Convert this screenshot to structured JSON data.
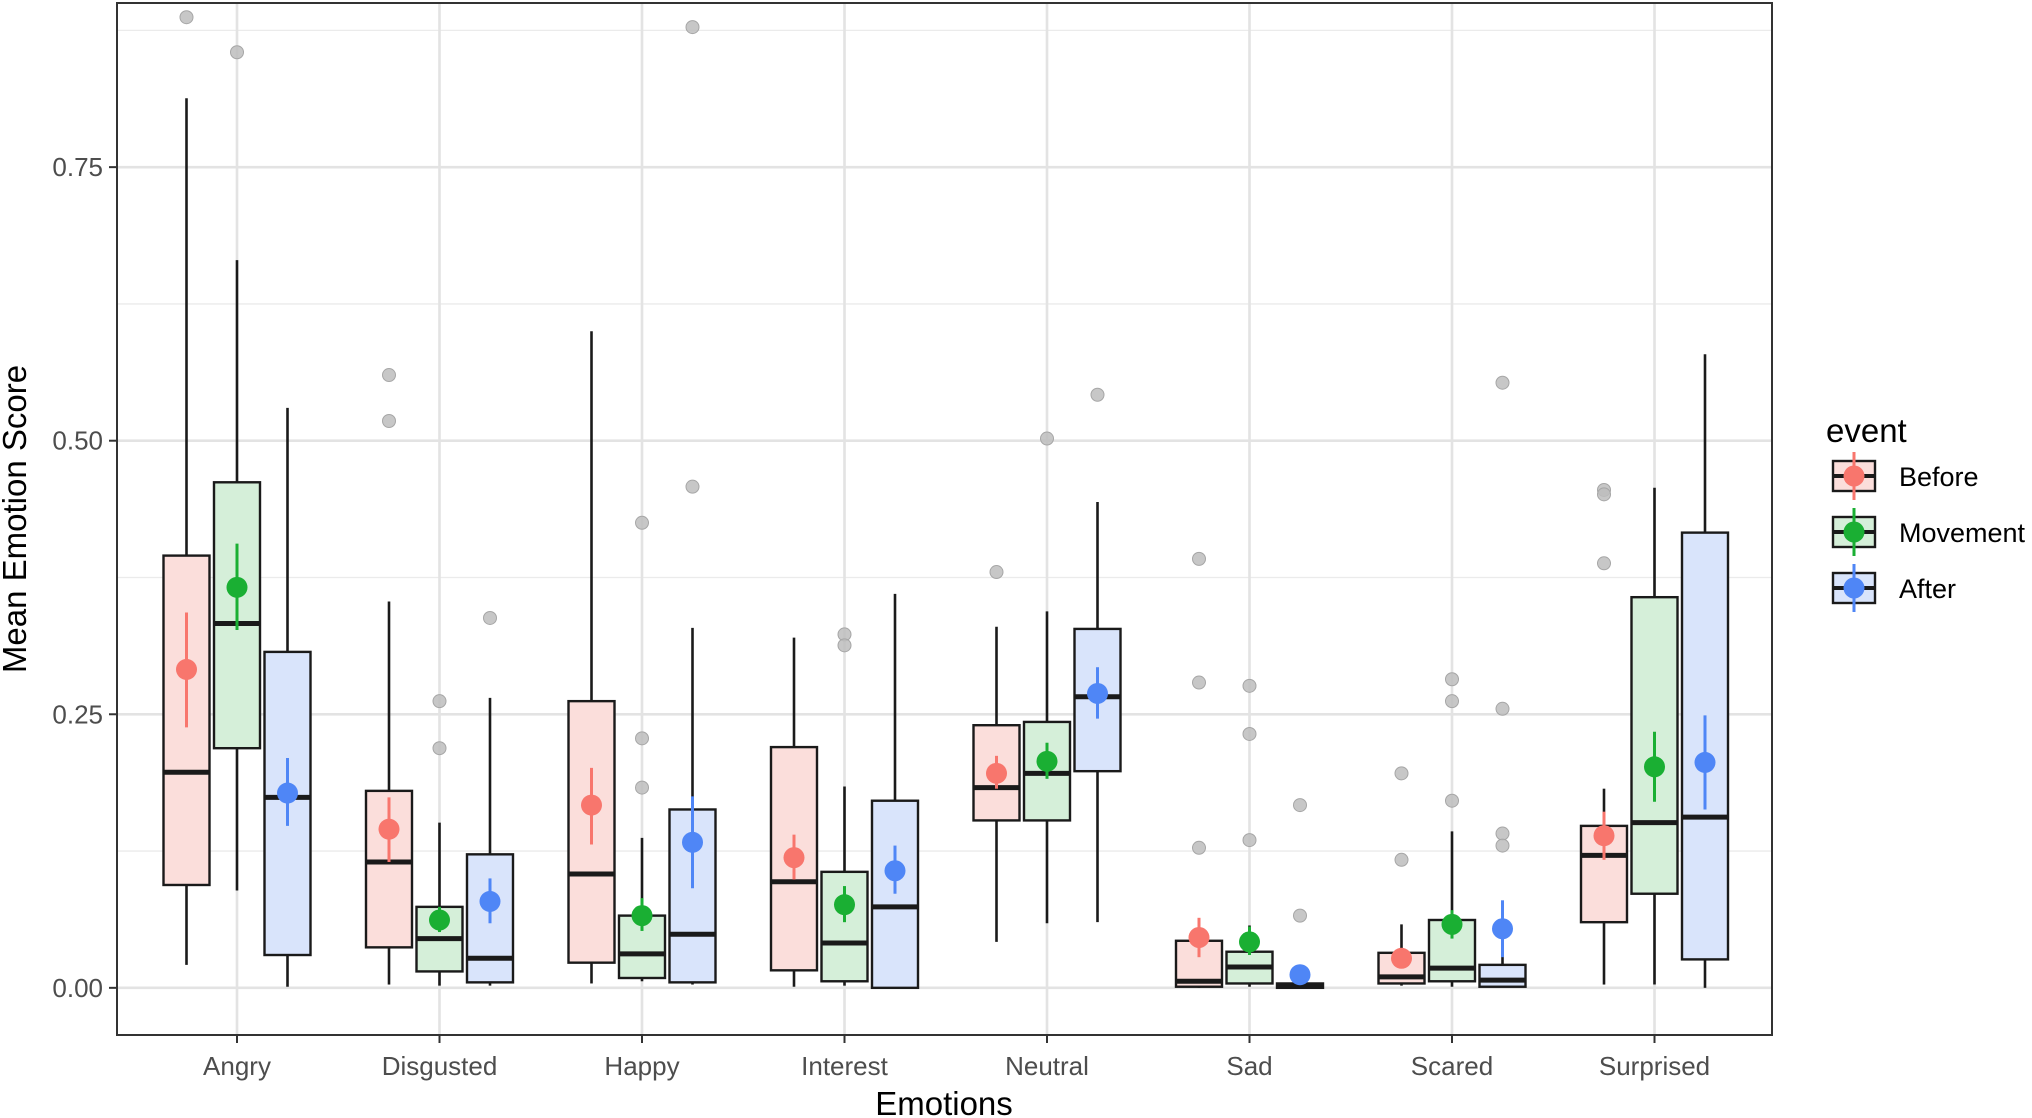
{
  "chart_data": {
    "type": "boxplot",
    "xlabel": "Emotions",
    "ylabel": "Mean Emotion Score",
    "ylim": [
      -0.0431,
      0.9
    ],
    "yticks": [
      0.0,
      0.25,
      0.5,
      0.75
    ],
    "ytick_labels": [
      "0.00",
      "0.25",
      "0.50",
      "0.75"
    ],
    "grid": true,
    "legend": {
      "title": "event",
      "position": "right",
      "entries": [
        {
          "name": "Before",
          "fill": "#fbdedb",
          "point": "#f8766d"
        },
        {
          "name": "Movement",
          "fill": "#d5efd9",
          "point": "#1aaf33"
        },
        {
          "name": "After",
          "fill": "#d9e4fb",
          "point": "#4f86f6"
        }
      ]
    },
    "categories": [
      "Angry",
      "Disgusted",
      "Happy",
      "Interest",
      "Neutral",
      "Sad",
      "Scared",
      "Surprised"
    ],
    "series": [
      {
        "name": "Before",
        "boxes": [
          {
            "whisker_low": 0.021,
            "q1": 0.094,
            "median": 0.197,
            "q3": 0.395,
            "whisker_high": 0.813,
            "outliers": [
              0.887
            ],
            "mean": 0.291,
            "ci": [
              0.238,
              0.343
            ]
          },
          {
            "whisker_low": 0.003,
            "q1": 0.037,
            "median": 0.115,
            "q3": 0.18,
            "whisker_high": 0.353,
            "outliers": [
              0.56,
              0.518
            ],
            "mean": 0.145,
            "ci": [
              0.115,
              0.174
            ]
          },
          {
            "whisker_low": 0.004,
            "q1": 0.023,
            "median": 0.104,
            "q3": 0.262,
            "whisker_high": 0.6,
            "outliers": [],
            "mean": 0.167,
            "ci": [
              0.131,
              0.201
            ]
          },
          {
            "whisker_low": 0.001,
            "q1": 0.016,
            "median": 0.097,
            "q3": 0.22,
            "whisker_high": 0.32,
            "outliers": [],
            "mean": 0.119,
            "ci": [
              0.099,
              0.14
            ]
          },
          {
            "whisker_low": 0.042,
            "q1": 0.153,
            "median": 0.183,
            "q3": 0.24,
            "whisker_high": 0.33,
            "outliers": [
              0.38
            ],
            "mean": 0.196,
            "ci": [
              0.182,
              0.212
            ]
          },
          {
            "whisker_low": 0.0,
            "q1": 0.001,
            "median": 0.006,
            "q3": 0.043,
            "whisker_high": 0.06,
            "outliers": [
              0.392,
              0.279,
              0.128
            ],
            "mean": 0.046,
            "ci": [
              0.028,
              0.064
            ]
          },
          {
            "whisker_low": 0.002,
            "q1": 0.004,
            "median": 0.01,
            "q3": 0.032,
            "whisker_high": 0.058,
            "outliers": [
              0.196,
              0.117
            ],
            "mean": 0.027,
            "ci": [
              0.019,
              0.035
            ]
          },
          {
            "whisker_low": 0.003,
            "q1": 0.06,
            "median": 0.121,
            "q3": 0.148,
            "whisker_high": 0.182,
            "outliers": [
              0.455,
              0.451,
              0.388
            ],
            "mean": 0.139,
            "ci": [
              0.117,
              0.161
            ]
          }
        ]
      },
      {
        "name": "Movement",
        "boxes": [
          {
            "whisker_low": 0.089,
            "q1": 0.219,
            "median": 0.333,
            "q3": 0.462,
            "whisker_high": 0.665,
            "outliers": [
              0.855
            ],
            "mean": 0.366,
            "ci": [
              0.327,
              0.406
            ]
          },
          {
            "whisker_low": 0.002,
            "q1": 0.015,
            "median": 0.045,
            "q3": 0.074,
            "whisker_high": 0.151,
            "outliers": [
              0.262,
              0.219
            ],
            "mean": 0.062,
            "ci": [
              0.051,
              0.074
            ]
          },
          {
            "whisker_low": 0.006,
            "q1": 0.009,
            "median": 0.031,
            "q3": 0.066,
            "whisker_high": 0.137,
            "outliers": [
              0.425,
              0.228,
              0.183
            ],
            "mean": 0.066,
            "ci": [
              0.052,
              0.082
            ]
          },
          {
            "whisker_low": 0.002,
            "q1": 0.006,
            "median": 0.041,
            "q3": 0.106,
            "whisker_high": 0.184,
            "outliers": [
              0.323,
              0.313
            ],
            "mean": 0.076,
            "ci": [
              0.06,
              0.093
            ]
          },
          {
            "whisker_low": 0.059,
            "q1": 0.153,
            "median": 0.196,
            "q3": 0.243,
            "whisker_high": 0.344,
            "outliers": [
              0.502
            ],
            "mean": 0.207,
            "ci": [
              0.191,
              0.224
            ]
          },
          {
            "whisker_low": 0.001,
            "q1": 0.004,
            "median": 0.019,
            "q3": 0.033,
            "whisker_high": 0.057,
            "outliers": [
              0.276,
              0.232,
              0.135
            ],
            "mean": 0.042,
            "ci": [
              0.03,
              0.056
            ]
          },
          {
            "whisker_low": 0.001,
            "q1": 0.006,
            "median": 0.018,
            "q3": 0.062,
            "whisker_high": 0.143,
            "outliers": [
              0.282,
              0.262,
              0.171
            ],
            "mean": 0.058,
            "ci": [
              0.045,
              0.071
            ]
          },
          {
            "whisker_low": 0.003,
            "q1": 0.086,
            "median": 0.151,
            "q3": 0.357,
            "whisker_high": 0.457,
            "outliers": [],
            "mean": 0.202,
            "ci": [
              0.17,
              0.234
            ]
          }
        ]
      },
      {
        "name": "After",
        "boxes": [
          {
            "whisker_low": 0.001,
            "q1": 0.03,
            "median": 0.174,
            "q3": 0.307,
            "whisker_high": 0.53,
            "outliers": [],
            "mean": 0.178,
            "ci": [
              0.148,
              0.21
            ]
          },
          {
            "whisker_low": 0.002,
            "q1": 0.005,
            "median": 0.027,
            "q3": 0.122,
            "whisker_high": 0.265,
            "outliers": [
              0.338
            ],
            "mean": 0.079,
            "ci": [
              0.059,
              0.1
            ]
          },
          {
            "whisker_low": 0.003,
            "q1": 0.005,
            "median": 0.049,
            "q3": 0.163,
            "whisker_high": 0.329,
            "outliers": [
              0.878,
              0.458
            ],
            "mean": 0.133,
            "ci": [
              0.091,
              0.175
            ]
          },
          {
            "whisker_low": 0.0,
            "q1": 0.0,
            "median": 0.074,
            "q3": 0.171,
            "whisker_high": 0.36,
            "outliers": [],
            "mean": 0.107,
            "ci": [
              0.086,
              0.13
            ]
          },
          {
            "whisker_low": 0.06,
            "q1": 0.198,
            "median": 0.266,
            "q3": 0.328,
            "whisker_high": 0.444,
            "outliers": [
              0.542
            ],
            "mean": 0.269,
            "ci": [
              0.246,
              0.293
            ]
          },
          {
            "whisker_low": 0.0,
            "q1": 0.0,
            "median": 0.002,
            "q3": 0.004,
            "whisker_high": 0.02,
            "outliers": [
              0.167,
              0.066
            ],
            "mean": 0.012,
            "ci": [
              0.006,
              0.02
            ]
          },
          {
            "whisker_low": 0.001,
            "q1": 0.001,
            "median": 0.007,
            "q3": 0.021,
            "whisker_high": 0.045,
            "outliers": [
              0.553,
              0.255,
              0.141,
              0.13
            ],
            "mean": 0.054,
            "ci": [
              0.028,
              0.08
            ]
          },
          {
            "whisker_low": 0.0,
            "q1": 0.026,
            "median": 0.156,
            "q3": 0.416,
            "whisker_high": 0.579,
            "outliers": [],
            "mean": 0.206,
            "ci": [
              0.163,
              0.249
            ]
          }
        ]
      }
    ]
  }
}
